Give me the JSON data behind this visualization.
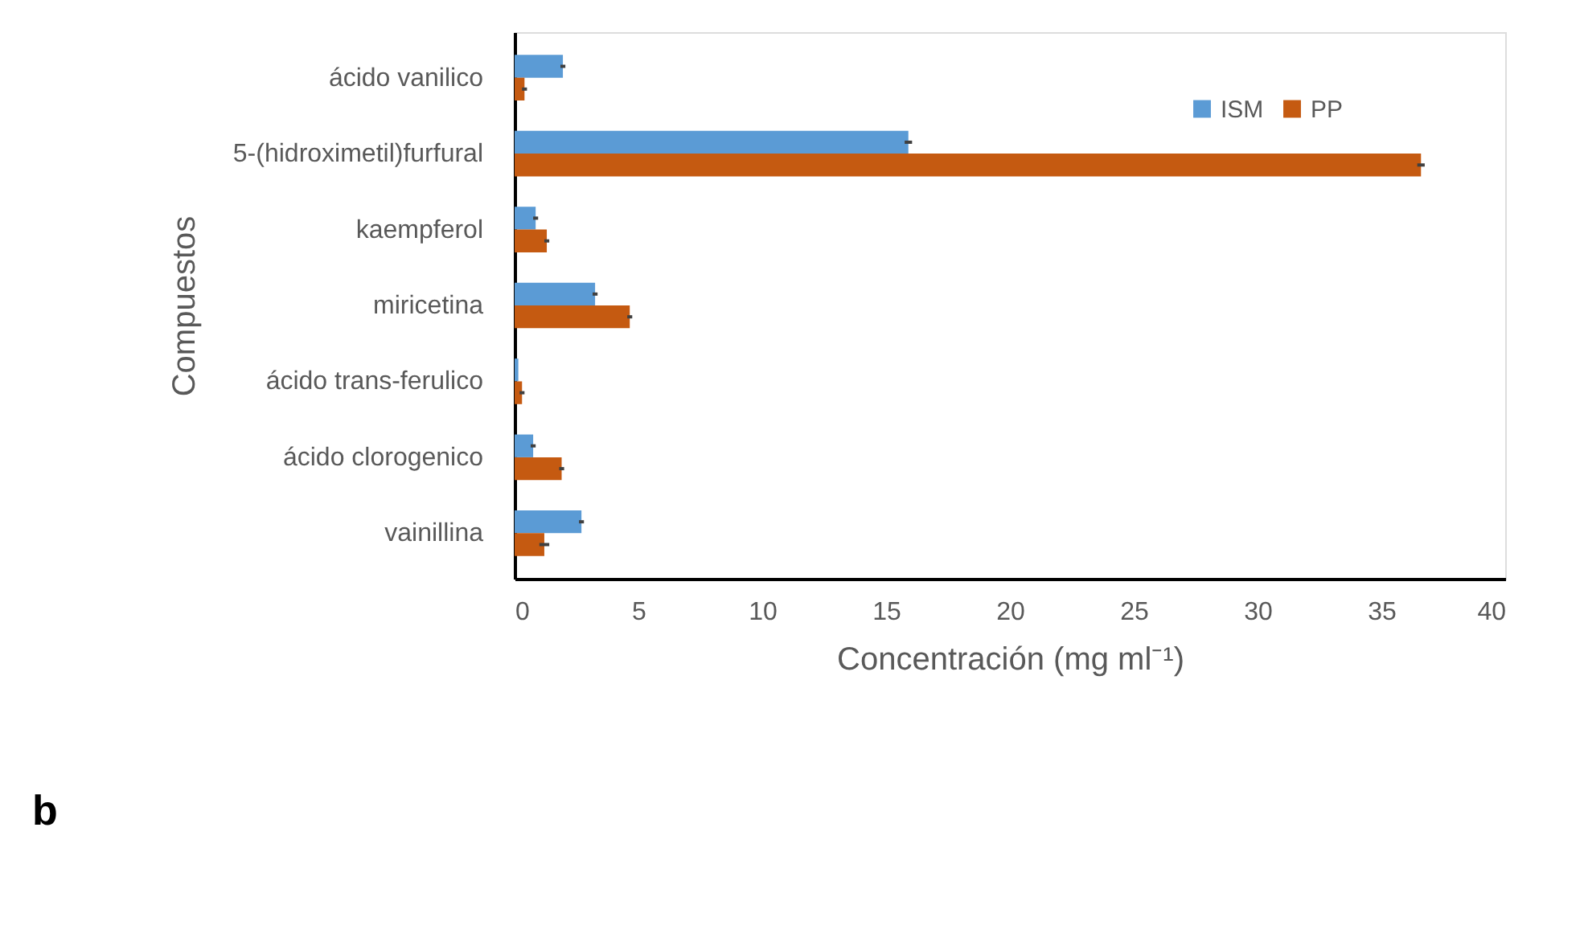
{
  "chart_data": {
    "type": "bar",
    "orientation": "horizontal",
    "categories": [
      "ácido vanilico",
      "5-(hidroximetil)furfural",
      "kaempferol",
      "miricetina",
      "ácido trans-ferulico",
      "ácido clorogenico",
      "vainillina"
    ],
    "series": [
      {
        "name": "ISM",
        "color": "#5b9bd5",
        "values": [
          1.95,
          15.9,
          0.85,
          3.25,
          0.15,
          0.75,
          2.7
        ],
        "errors": [
          0.1,
          0.15,
          0.1,
          0.1,
          null,
          0.1,
          0.1
        ]
      },
      {
        "name": "PP",
        "color": "#c55a11",
        "values": [
          0.4,
          36.6,
          1.3,
          4.65,
          0.3,
          1.9,
          1.2
        ],
        "errors": [
          0.1,
          0.15,
          0.1,
          0.1,
          0.1,
          0.1,
          0.2
        ]
      }
    ],
    "xlim": [
      0,
      40
    ],
    "xticks": [
      0,
      5,
      10,
      15,
      20,
      25,
      30,
      35,
      40
    ],
    "xlabel": "Concentración (mg ml⁻¹)",
    "ylabel": "Compuestos",
    "legend": "top right",
    "grid": false,
    "annotations": [
      "b"
    ]
  }
}
